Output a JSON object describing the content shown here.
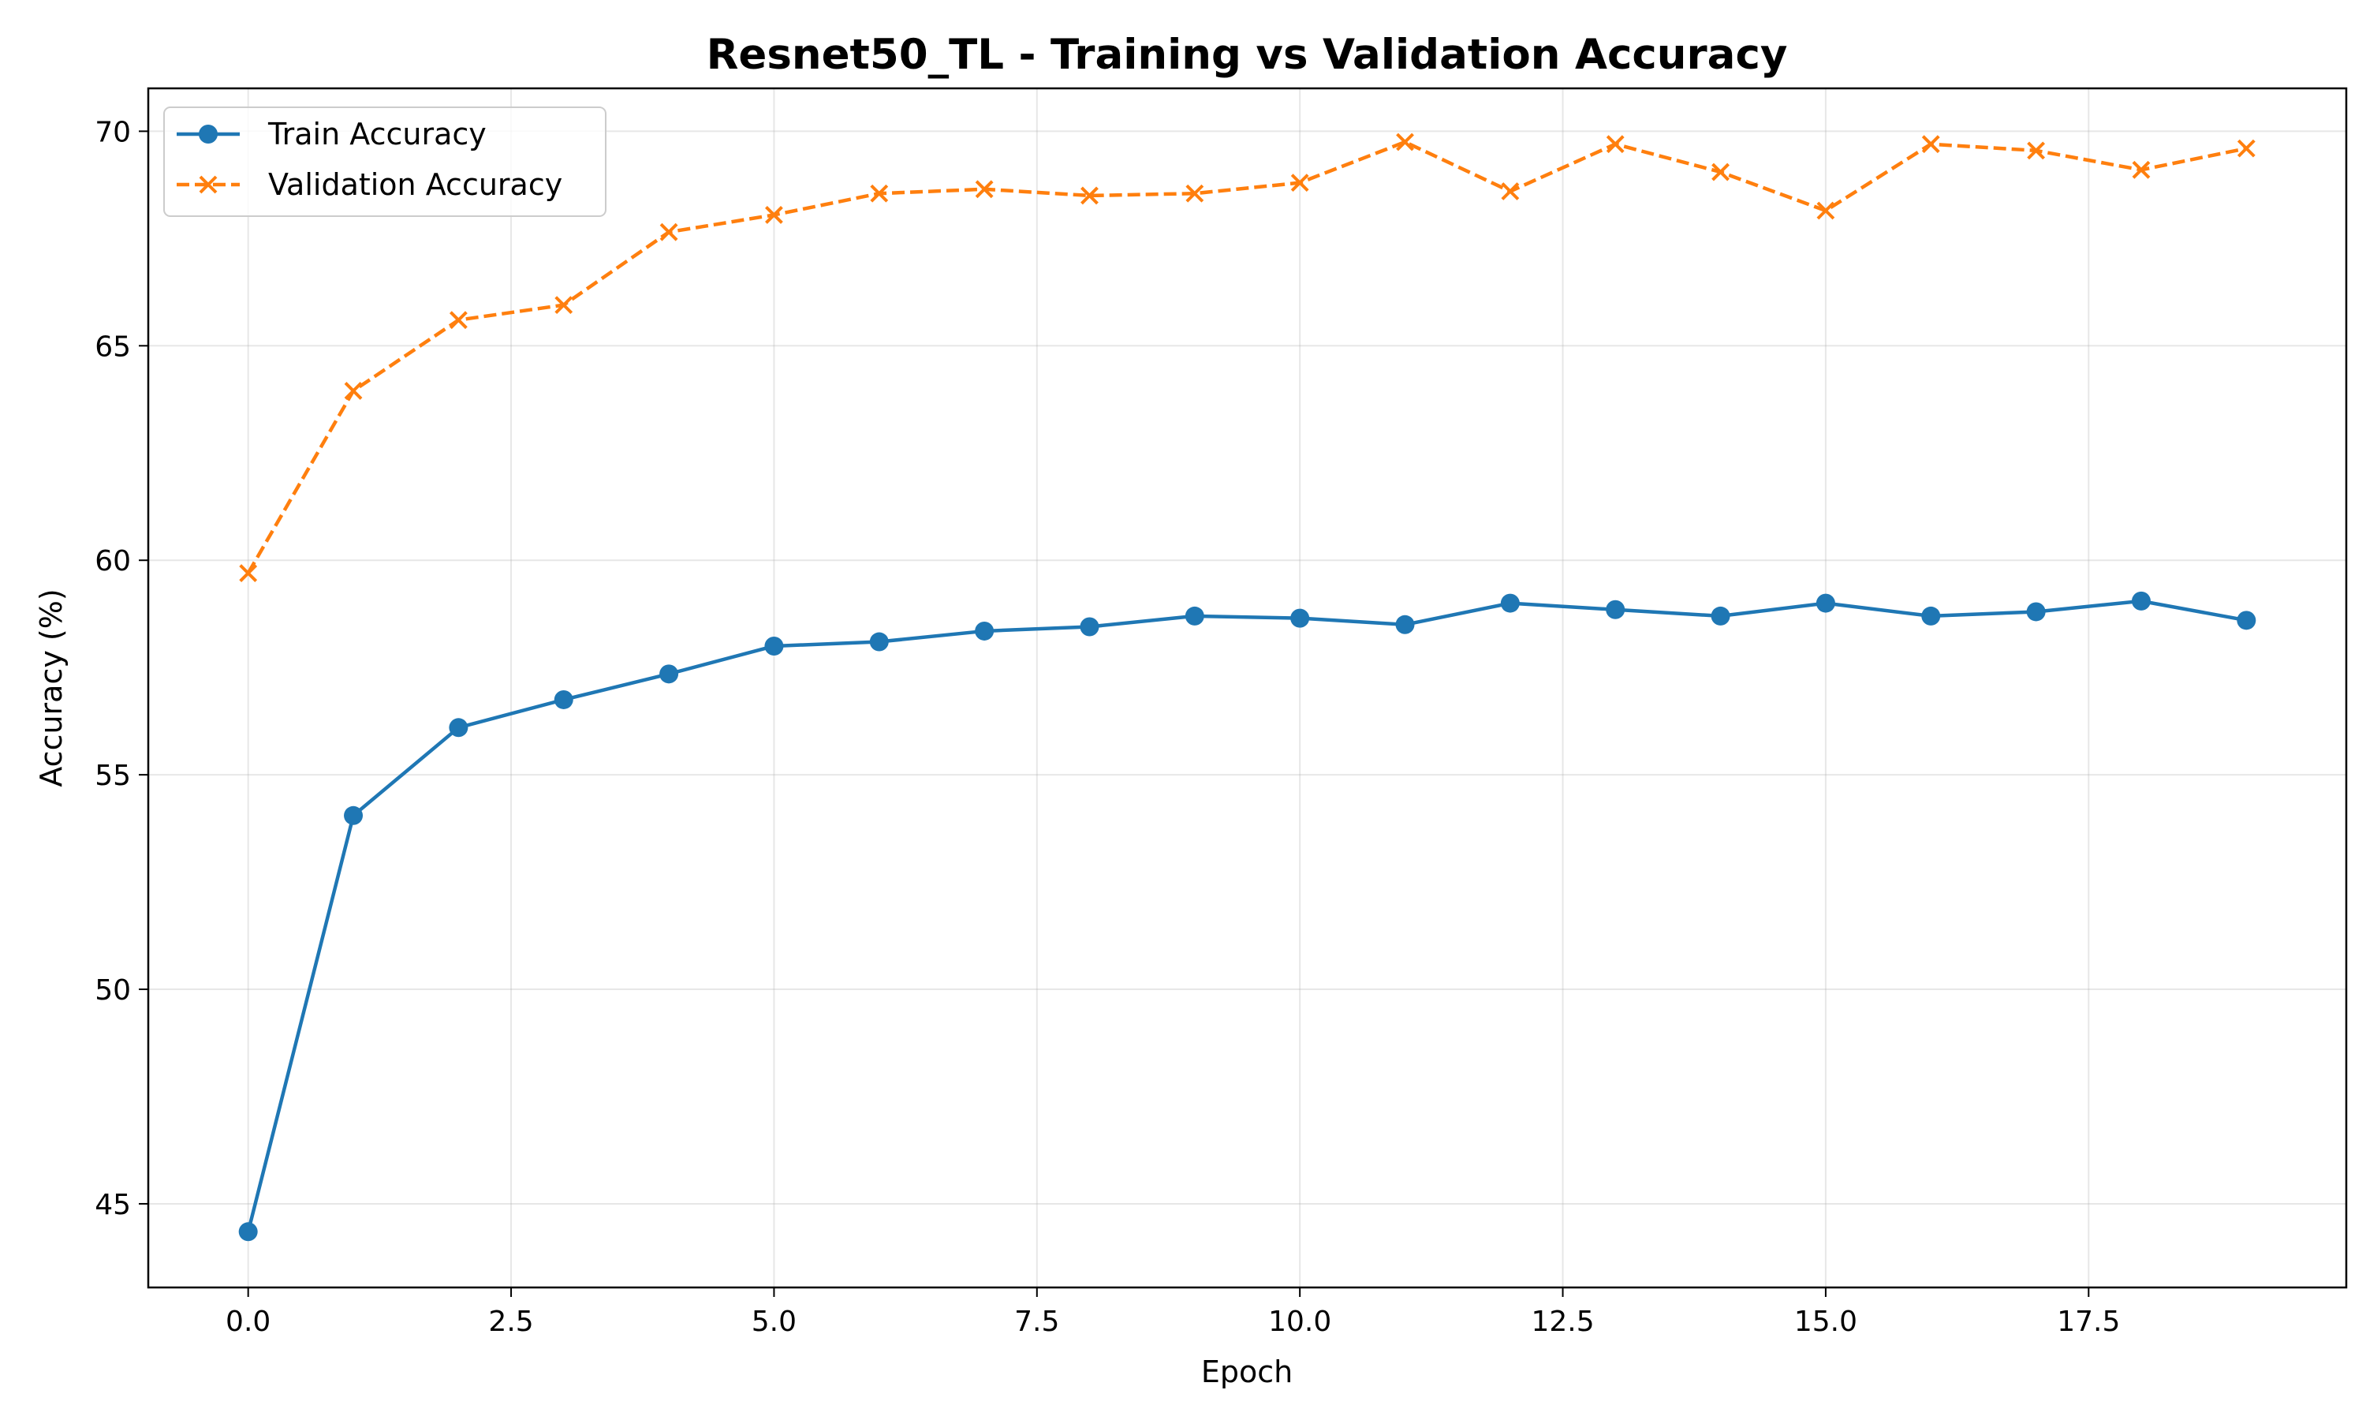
{
  "chart_data": {
    "type": "line",
    "title": "Resnet50_TL - Training vs Validation Accuracy",
    "xlabel": "Epoch",
    "ylabel": "Accuracy (%)",
    "xlim": [
      -0.95,
      19.95
    ],
    "ylim": [
      43.05,
      71.0
    ],
    "xticks": [
      0.0,
      2.5,
      5.0,
      7.5,
      10.0,
      12.5,
      15.0,
      17.5
    ],
    "xtick_labels": [
      "0.0",
      "2.5",
      "5.0",
      "7.5",
      "10.0",
      "12.5",
      "15.0",
      "17.5"
    ],
    "yticks": [
      45,
      50,
      55,
      60,
      65,
      70
    ],
    "ytick_labels": [
      "45",
      "50",
      "55",
      "60",
      "65",
      "70"
    ],
    "grid": true,
    "legend_position": "top-left",
    "x": [
      0,
      1,
      2,
      3,
      4,
      5,
      6,
      7,
      8,
      9,
      10,
      11,
      12,
      13,
      14,
      15,
      16,
      17,
      18,
      19
    ],
    "series": [
      {
        "name": "Train Accuracy",
        "color": "#1f77b4",
        "line_style": "solid",
        "marker": "circle",
        "values": [
          44.35,
          54.05,
          56.1,
          56.75,
          57.35,
          58.0,
          58.1,
          58.35,
          58.45,
          58.7,
          58.65,
          58.5,
          59.0,
          58.85,
          58.7,
          59.0,
          58.7,
          58.8,
          59.05,
          58.6
        ]
      },
      {
        "name": "Validation Accuracy",
        "color": "#ff7f0e",
        "line_style": "dashed",
        "marker": "x",
        "values": [
          59.7,
          63.95,
          65.6,
          65.95,
          67.65,
          68.05,
          68.55,
          68.65,
          68.5,
          68.55,
          68.8,
          69.75,
          68.6,
          69.7,
          69.05,
          68.15,
          69.7,
          69.55,
          69.1,
          69.6
        ]
      }
    ]
  }
}
